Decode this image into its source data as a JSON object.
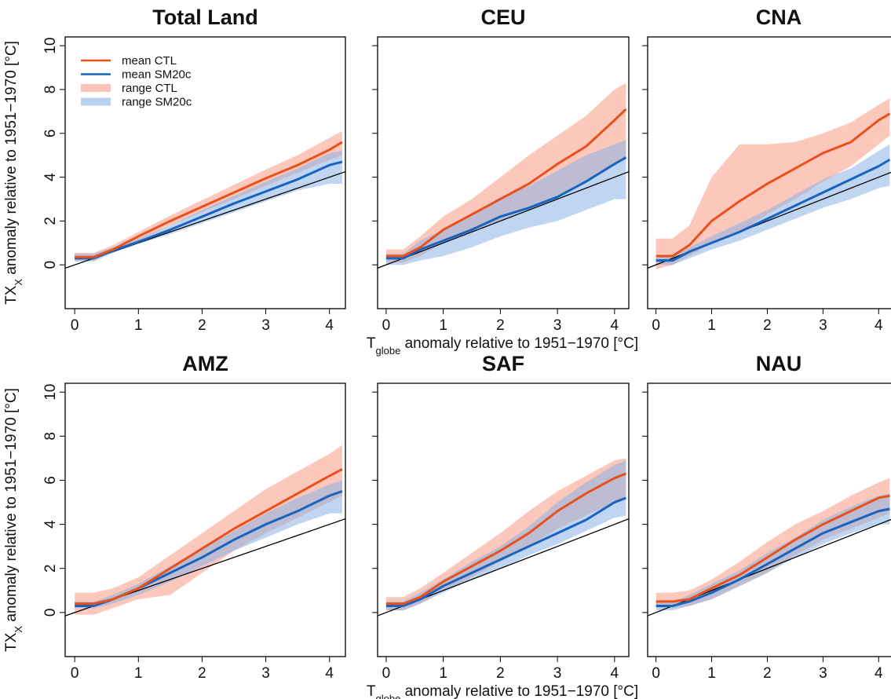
{
  "chart_data": [
    {
      "type": "line",
      "title": "Total Land",
      "legend": "top-left",
      "x": [
        0,
        0.3,
        0.6,
        1,
        1.5,
        2,
        2.5,
        3,
        3.5,
        4,
        4.2
      ],
      "series": [
        {
          "name": "mean CTL",
          "color": "#e8501c",
          "values": [
            0.35,
            0.35,
            0.7,
            1.3,
            2.0,
            2.65,
            3.3,
            3.95,
            4.55,
            5.25,
            5.6
          ]
        },
        {
          "name": "mean SM20c",
          "color": "#1763be",
          "values": [
            0.3,
            0.3,
            0.65,
            1.05,
            1.6,
            2.2,
            2.8,
            3.35,
            3.9,
            4.55,
            4.7
          ]
        }
      ],
      "bands": [
        {
          "name": "range CTL",
          "color": "#f89a84",
          "lower": [
            0.2,
            0.2,
            0.6,
            1.1,
            1.8,
            2.4,
            3.0,
            3.6,
            4.2,
            4.8,
            5.0
          ],
          "upper": [
            0.55,
            0.55,
            0.9,
            1.5,
            2.25,
            2.95,
            3.65,
            4.35,
            5.0,
            5.8,
            6.1
          ]
        },
        {
          "name": "range SM20c",
          "color": "#8ab3e6",
          "lower": [
            0.15,
            0.15,
            0.55,
            0.95,
            1.4,
            1.9,
            2.4,
            2.9,
            3.4,
            3.7,
            3.7
          ],
          "upper": [
            0.5,
            0.5,
            0.8,
            1.2,
            1.8,
            2.5,
            3.15,
            3.8,
            4.4,
            5.1,
            5.2
          ]
        }
      ],
      "reference_line": {
        "x": [
          -0.15,
          4.25
        ],
        "values": [
          -0.15,
          4.25
        ],
        "color": "#000000"
      },
      "xlim": [
        -0.15,
        4.25
      ],
      "ylim": [
        -2,
        10.4
      ],
      "xticks": [
        0,
        1,
        2,
        3,
        4
      ],
      "yticks": [
        0,
        2,
        4,
        6,
        8,
        10
      ]
    },
    {
      "type": "line",
      "title": "CEU",
      "x": [
        0,
        0.3,
        0.6,
        1,
        1.5,
        2,
        2.5,
        3,
        3.5,
        4,
        4.2
      ],
      "series": [
        {
          "color": "#e8501c",
          "values": [
            0.4,
            0.4,
            0.8,
            1.6,
            2.3,
            3.0,
            3.7,
            4.6,
            5.4,
            6.6,
            7.1
          ]
        },
        {
          "color": "#1763be",
          "values": [
            0.3,
            0.3,
            0.7,
            1.1,
            1.6,
            2.2,
            2.6,
            3.1,
            3.8,
            4.6,
            4.9
          ]
        }
      ],
      "bands": [
        {
          "color": "#f89a84",
          "lower": [
            0.1,
            0.1,
            0.4,
            1.0,
            1.5,
            2.0,
            2.6,
            3.2,
            3.8,
            4.6,
            4.8
          ],
          "upper": [
            0.7,
            0.7,
            1.3,
            2.2,
            3.0,
            4.0,
            5.0,
            5.9,
            6.8,
            8.0,
            8.3
          ]
        },
        {
          "color": "#8ab3e6",
          "lower": [
            0.0,
            0.0,
            0.2,
            0.4,
            0.8,
            1.3,
            1.7,
            2.0,
            2.5,
            3.0,
            3.0
          ],
          "upper": [
            0.5,
            0.5,
            1.1,
            1.6,
            2.3,
            3.1,
            3.6,
            4.3,
            5.0,
            5.5,
            5.7
          ]
        }
      ],
      "reference_line": {
        "x": [
          -0.15,
          4.25
        ],
        "values": [
          -0.15,
          4.25
        ],
        "color": "#000000"
      },
      "xlim": [
        -0.15,
        4.25
      ],
      "ylim": [
        -2,
        10.4
      ],
      "xticks": [
        0,
        1,
        2,
        3,
        4
      ],
      "yticks": [
        0,
        2,
        4,
        6,
        8,
        10
      ]
    },
    {
      "type": "line",
      "title": "CNA",
      "x": [
        0,
        0.3,
        0.6,
        1,
        1.5,
        2,
        2.5,
        3,
        3.5,
        4,
        4.2
      ],
      "series": [
        {
          "color": "#e8501c",
          "values": [
            0.4,
            0.4,
            0.9,
            2.0,
            2.9,
            3.7,
            4.4,
            5.1,
            5.6,
            6.6,
            6.9
          ]
        },
        {
          "color": "#1763be",
          "values": [
            0.2,
            0.2,
            0.6,
            1.0,
            1.5,
            2.1,
            2.7,
            3.3,
            3.9,
            4.5,
            4.8
          ]
        }
      ],
      "bands": [
        {
          "color": "#f89a84",
          "lower": [
            -0.2,
            0.0,
            0.4,
            1.0,
            1.5,
            2.3,
            3.0,
            3.8,
            4.5,
            5.5,
            5.9
          ],
          "upper": [
            1.2,
            1.2,
            1.8,
            4.0,
            5.5,
            5.5,
            5.6,
            6.0,
            6.5,
            7.3,
            7.6
          ]
        },
        {
          "color": "#8ab3e6",
          "lower": [
            0.0,
            0.0,
            0.3,
            0.7,
            1.1,
            1.6,
            2.1,
            2.6,
            3.0,
            3.5,
            3.6
          ],
          "upper": [
            0.4,
            0.4,
            0.8,
            1.3,
            1.9,
            2.5,
            3.2,
            3.9,
            4.4,
            5.2,
            5.5
          ]
        }
      ],
      "reference_line": {
        "x": [
          -0.15,
          4.25
        ],
        "values": [
          -0.15,
          4.25
        ],
        "color": "#000000"
      },
      "xlim": [
        -0.15,
        4.25
      ],
      "ylim": [
        -2,
        10.4
      ],
      "xticks": [
        0,
        1,
        2,
        3,
        4
      ],
      "yticks": [
        0,
        2,
        4,
        6,
        8,
        10
      ]
    },
    {
      "type": "line",
      "title": "AMZ",
      "x": [
        0,
        0.3,
        0.6,
        1,
        1.5,
        2,
        2.5,
        3,
        3.5,
        4,
        4.2
      ],
      "series": [
        {
          "color": "#e8501c",
          "values": [
            0.4,
            0.4,
            0.6,
            1.1,
            2.0,
            2.9,
            3.8,
            4.6,
            5.4,
            6.2,
            6.5
          ]
        },
        {
          "color": "#1763be",
          "values": [
            0.3,
            0.3,
            0.6,
            1.1,
            1.8,
            2.5,
            3.3,
            4.0,
            4.6,
            5.3,
            5.5
          ]
        }
      ],
      "bands": [
        {
          "color": "#f89a84",
          "lower": [
            -0.1,
            -0.1,
            0.2,
            0.6,
            0.8,
            1.8,
            2.8,
            3.6,
            4.3,
            5.0,
            5.3
          ],
          "upper": [
            0.9,
            0.9,
            1.1,
            1.6,
            2.6,
            3.6,
            4.6,
            5.6,
            6.4,
            7.2,
            7.6
          ]
        },
        {
          "color": "#8ab3e6",
          "lower": [
            0.2,
            0.2,
            0.4,
            0.8,
            1.4,
            2.1,
            2.8,
            3.4,
            4.0,
            4.5,
            4.5
          ],
          "upper": [
            0.5,
            0.5,
            0.8,
            1.3,
            2.1,
            2.9,
            3.7,
            4.5,
            5.2,
            5.8,
            6.0
          ]
        }
      ],
      "reference_line": {
        "x": [
          -0.15,
          4.25
        ],
        "values": [
          -0.15,
          4.25
        ],
        "color": "#000000"
      },
      "xlim": [
        -0.15,
        4.25
      ],
      "ylim": [
        -2,
        10.4
      ],
      "xticks": [
        0,
        1,
        2,
        3,
        4
      ],
      "yticks": [
        0,
        2,
        4,
        6,
        8,
        10
      ]
    },
    {
      "type": "line",
      "title": "SAF",
      "x": [
        0,
        0.3,
        0.6,
        1,
        1.5,
        2,
        2.5,
        3,
        3.5,
        4,
        4.2
      ],
      "series": [
        {
          "color": "#e8501c",
          "values": [
            0.4,
            0.4,
            0.7,
            1.4,
            2.1,
            2.8,
            3.6,
            4.6,
            5.4,
            6.1,
            6.3
          ]
        },
        {
          "color": "#1763be",
          "values": [
            0.3,
            0.3,
            0.6,
            1.2,
            1.8,
            2.4,
            3.0,
            3.6,
            4.2,
            5.0,
            5.2
          ]
        }
      ],
      "bands": [
        {
          "color": "#f89a84",
          "lower": [
            0.1,
            0.1,
            0.4,
            1.0,
            1.6,
            2.3,
            3.0,
            3.8,
            4.4,
            5.0,
            5.3
          ],
          "upper": [
            0.7,
            0.7,
            1.1,
            1.8,
            2.7,
            3.6,
            4.6,
            5.5,
            6.2,
            6.9,
            7.0
          ]
        },
        {
          "color": "#8ab3e6",
          "lower": [
            0.1,
            0.1,
            0.4,
            0.9,
            1.5,
            2.0,
            2.6,
            3.1,
            3.7,
            4.3,
            4.4
          ],
          "upper": [
            0.5,
            0.5,
            0.9,
            1.5,
            2.3,
            3.0,
            3.9,
            5.0,
            5.9,
            6.7,
            6.9
          ]
        }
      ],
      "reference_line": {
        "x": [
          -0.15,
          4.25
        ],
        "values": [
          -0.15,
          4.25
        ],
        "color": "#000000"
      },
      "xlim": [
        -0.15,
        4.25
      ],
      "ylim": [
        -2,
        10.4
      ],
      "xticks": [
        0,
        1,
        2,
        3,
        4
      ],
      "yticks": [
        0,
        2,
        4,
        6,
        8,
        10
      ]
    },
    {
      "type": "line",
      "title": "NAU",
      "x": [
        0,
        0.3,
        0.6,
        1,
        1.5,
        2,
        2.5,
        3,
        3.5,
        4,
        4.2
      ],
      "series": [
        {
          "color": "#e8501c",
          "values": [
            0.5,
            0.5,
            0.6,
            1.1,
            1.7,
            2.5,
            3.3,
            4.0,
            4.6,
            5.2,
            5.3
          ]
        },
        {
          "color": "#1763be",
          "values": [
            0.3,
            0.3,
            0.5,
            0.9,
            1.5,
            2.2,
            2.9,
            3.6,
            4.1,
            4.6,
            4.7
          ]
        }
      ],
      "bands": [
        {
          "color": "#f89a84",
          "lower": [
            0.2,
            0.2,
            0.3,
            0.6,
            1.2,
            1.8,
            2.6,
            3.3,
            3.8,
            4.3,
            4.5
          ],
          "upper": [
            0.9,
            0.9,
            1.0,
            1.5,
            2.3,
            3.2,
            4.0,
            4.6,
            5.3,
            5.9,
            6.1
          ]
        },
        {
          "color": "#8ab3e6",
          "lower": [
            0.1,
            0.1,
            0.3,
            0.6,
            1.2,
            1.8,
            2.5,
            3.1,
            3.6,
            4.0,
            4.0
          ],
          "upper": [
            0.5,
            0.5,
            0.8,
            1.3,
            1.9,
            2.7,
            3.4,
            4.2,
            4.8,
            5.3,
            5.4
          ]
        }
      ],
      "reference_line": {
        "x": [
          -0.15,
          4.25
        ],
        "values": [
          -0.15,
          4.25
        ],
        "color": "#000000"
      },
      "xlim": [
        -0.15,
        4.25
      ],
      "ylim": [
        -2,
        10.4
      ],
      "xticks": [
        0,
        1,
        2,
        3,
        4
      ],
      "yticks": [
        0,
        2,
        4,
        6,
        8,
        10
      ]
    }
  ],
  "x_label": {
    "main": "T",
    "sub": "globe",
    "rest": " anomaly relative to 1951−1970 [°C]"
  },
  "y_label": {
    "main": "TX",
    "sub": "X",
    "rest": " anomaly relative to 1951−1970 [°C]"
  }
}
